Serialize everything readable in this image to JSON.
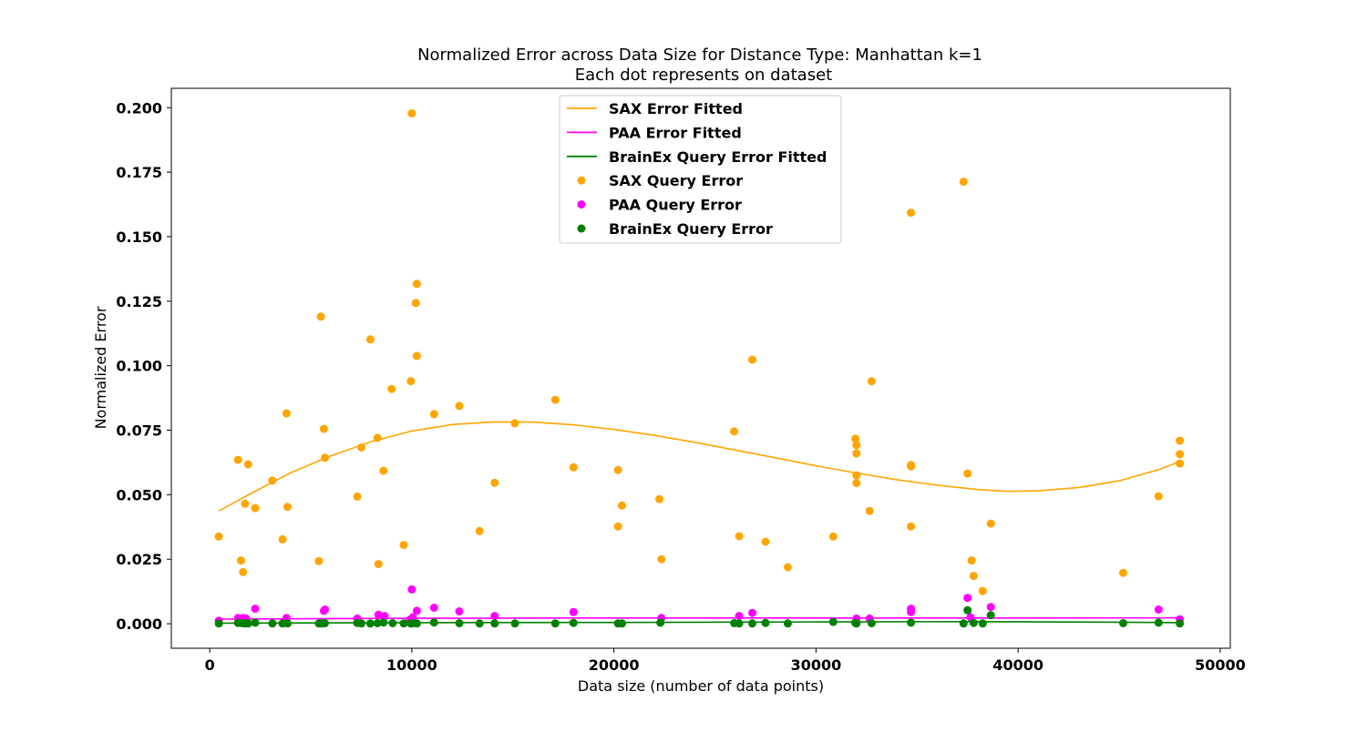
{
  "chart_data": {
    "type": "scatter",
    "title": "Normalized Error across Data Size for Distance Type: Manhattan k=1",
    "subtitle": "Each dot represents on dataset",
    "xlabel": "Data size (number of data points)",
    "ylabel": "Normalized Error",
    "xlim": [
      -1900,
      50500
    ],
    "ylim": [
      -0.0095,
      0.2075
    ],
    "x_ticks": [
      0,
      10000,
      20000,
      30000,
      40000,
      50000
    ],
    "x_tick_labels": [
      "0",
      "10000",
      "20000",
      "30000",
      "40000",
      "50000"
    ],
    "y_ticks": [
      0.0,
      0.025,
      0.05,
      0.075,
      0.1,
      0.125,
      0.15,
      0.175,
      0.2
    ],
    "y_tick_labels": [
      "0.000",
      "0.025",
      "0.050",
      "0.075",
      "0.100",
      "0.125",
      "0.150",
      "0.175",
      "0.200"
    ],
    "grid": false,
    "legend_position": "top-center",
    "fitted_lines": [
      {
        "name": "SAX Error Fitted",
        "color": "#ffa500",
        "x": [
          450,
          2000,
          4000,
          6000,
          8000,
          10000,
          12000,
          14000,
          16000,
          18000,
          20000,
          22000,
          24000,
          26000,
          28000,
          30000,
          32000,
          34000,
          36000,
          38000,
          39500,
          41000,
          43000,
          45000,
          47000,
          48000
        ],
        "y": [
          0.0437,
          0.0503,
          0.0585,
          0.0651,
          0.0706,
          0.0747,
          0.0772,
          0.0782,
          0.0781,
          0.0771,
          0.0753,
          0.073,
          0.0703,
          0.0673,
          0.0643,
          0.0612,
          0.0584,
          0.0558,
          0.0537,
          0.052,
          0.0513,
          0.0515,
          0.0528,
          0.0554,
          0.0598,
          0.0629
        ]
      },
      {
        "name": "PAA Error Fitted",
        "color": "#ff00ff",
        "x": [
          450,
          10000,
          20000,
          30000,
          40000,
          48000
        ],
        "y": [
          0.0018,
          0.0021,
          0.0022,
          0.0022,
          0.0022,
          0.0023
        ]
      },
      {
        "name": "BrainEx Query Error Fitted",
        "color": "#008000",
        "x": [
          450,
          10000,
          20000,
          30000,
          37500,
          45000,
          48000
        ],
        "y": [
          0.0002,
          0.0004,
          0.0005,
          0.0007,
          0.0008,
          0.0006,
          0.0004
        ]
      }
    ],
    "series": [
      {
        "name": "SAX Query Error",
        "color": "#ffa500",
        "points": [
          [
            450,
            0.0338
          ],
          [
            1400,
            0.0635
          ],
          [
            1550,
            0.0245
          ],
          [
            1650,
            0.02
          ],
          [
            1750,
            0.0465
          ],
          [
            1900,
            0.0618
          ],
          [
            2250,
            0.0448
          ],
          [
            3100,
            0.0555
          ],
          [
            3600,
            0.0327
          ],
          [
            3800,
            0.0815
          ],
          [
            3850,
            0.0453
          ],
          [
            5400,
            0.0243
          ],
          [
            5500,
            0.119
          ],
          [
            5650,
            0.0755
          ],
          [
            5700,
            0.0643
          ],
          [
            7300,
            0.0493
          ],
          [
            7500,
            0.0683
          ],
          [
            7950,
            0.1102
          ],
          [
            8300,
            0.072
          ],
          [
            8350,
            0.0231
          ],
          [
            8600,
            0.0593
          ],
          [
            9000,
            0.091
          ],
          [
            9600,
            0.0305
          ],
          [
            9950,
            0.094
          ],
          [
            10000,
            0.1978
          ],
          [
            10200,
            0.1243
          ],
          [
            10250,
            0.1317
          ],
          [
            10250,
            0.1038
          ],
          [
            11100,
            0.0812
          ],
          [
            12350,
            0.0844
          ],
          [
            13350,
            0.0359
          ],
          [
            14100,
            0.0546
          ],
          [
            15100,
            0.0777
          ],
          [
            17100,
            0.0868
          ],
          [
            18000,
            0.0606
          ],
          [
            20200,
            0.0596
          ],
          [
            20200,
            0.0377
          ],
          [
            20400,
            0.0458
          ],
          [
            22250,
            0.0483
          ],
          [
            22350,
            0.025
          ],
          [
            25950,
            0.0745
          ],
          [
            26200,
            0.0339
          ],
          [
            26850,
            0.1023
          ],
          [
            27500,
            0.0318
          ],
          [
            28600,
            0.0219
          ],
          [
            30850,
            0.0338
          ],
          [
            31950,
            0.0717
          ],
          [
            32000,
            0.0692
          ],
          [
            32000,
            0.066
          ],
          [
            32000,
            0.0575
          ],
          [
            32000,
            0.0545
          ],
          [
            32650,
            0.0437
          ],
          [
            32750,
            0.094
          ],
          [
            34700,
            0.1593
          ],
          [
            34700,
            0.0615
          ],
          [
            34700,
            0.061
          ],
          [
            34700,
            0.0377
          ],
          [
            37300,
            0.1713
          ],
          [
            37500,
            0.0582
          ],
          [
            37700,
            0.0245
          ],
          [
            37800,
            0.0185
          ],
          [
            38250,
            0.0127
          ],
          [
            38650,
            0.0388
          ],
          [
            45200,
            0.0197
          ],
          [
            46950,
            0.0494
          ],
          [
            48000,
            0.0709
          ],
          [
            48000,
            0.0657
          ],
          [
            48000,
            0.0621
          ]
        ]
      },
      {
        "name": "PAA Query Error",
        "color": "#ff00ff",
        "points": [
          [
            450,
            0.0012
          ],
          [
            1400,
            0.0022
          ],
          [
            1650,
            0.0022
          ],
          [
            1800,
            0.002
          ],
          [
            2250,
            0.0058
          ],
          [
            3800,
            0.0022
          ],
          [
            5650,
            0.005
          ],
          [
            5700,
            0.0055
          ],
          [
            7300,
            0.002
          ],
          [
            8350,
            0.0035
          ],
          [
            8650,
            0.003
          ],
          [
            9900,
            0.0015
          ],
          [
            10000,
            0.0133
          ],
          [
            10050,
            0.0025
          ],
          [
            10250,
            0.005
          ],
          [
            11100,
            0.0062
          ],
          [
            12350,
            0.0048
          ],
          [
            14100,
            0.003
          ],
          [
            18000,
            0.0045
          ],
          [
            22350,
            0.0022
          ],
          [
            26200,
            0.003
          ],
          [
            26850,
            0.0042
          ],
          [
            32000,
            0.002
          ],
          [
            32650,
            0.002
          ],
          [
            34700,
            0.0058
          ],
          [
            34700,
            0.0045
          ],
          [
            37500,
            0.01
          ],
          [
            37650,
            0.0025
          ],
          [
            38650,
            0.0065
          ],
          [
            46950,
            0.0055
          ],
          [
            48000,
            0.0017
          ]
        ]
      },
      {
        "name": "BrainEx Query Error",
        "color": "#008000",
        "points": [
          [
            450,
            0.0001
          ],
          [
            1400,
            0.0003
          ],
          [
            1600,
            0.0002
          ],
          [
            1750,
            0.0001
          ],
          [
            1900,
            0.0001
          ],
          [
            2250,
            0.0004
          ],
          [
            3100,
            0.0001
          ],
          [
            3600,
            0.0001
          ],
          [
            3850,
            0.0001
          ],
          [
            5400,
            0.0001
          ],
          [
            5550,
            0.0001
          ],
          [
            5700,
            0.0002
          ],
          [
            7300,
            0.0003
          ],
          [
            7500,
            0.0001
          ],
          [
            7950,
            0.0001
          ],
          [
            8300,
            0.0002
          ],
          [
            8600,
            0.0005
          ],
          [
            9050,
            0.0002
          ],
          [
            9600,
            0.0001
          ],
          [
            9950,
            0.0001
          ],
          [
            10000,
            0.0001
          ],
          [
            10250,
            0.0001
          ],
          [
            11100,
            0.0005
          ],
          [
            12350,
            0.0002
          ],
          [
            13350,
            0.0001
          ],
          [
            14100,
            0.0001
          ],
          [
            15100,
            0.0001
          ],
          [
            17100,
            0.0001
          ],
          [
            18000,
            0.0003
          ],
          [
            20200,
            0.0001
          ],
          [
            20400,
            0.0001
          ],
          [
            22300,
            0.0004
          ],
          [
            25950,
            0.0002
          ],
          [
            26200,
            0.0001
          ],
          [
            26850,
            0.0001
          ],
          [
            27500,
            0.0003
          ],
          [
            28600,
            0.0001
          ],
          [
            30850,
            0.0007
          ],
          [
            31950,
            0.0003
          ],
          [
            32000,
            0.0001
          ],
          [
            32750,
            0.0002
          ],
          [
            34700,
            0.0004
          ],
          [
            37300,
            0.0001
          ],
          [
            37500,
            0.0052
          ],
          [
            37800,
            0.0003
          ],
          [
            38250,
            0.0001
          ],
          [
            38650,
            0.0033
          ],
          [
            45200,
            0.0002
          ],
          [
            46950,
            0.0004
          ],
          [
            48000,
            0.0001
          ]
        ]
      }
    ]
  }
}
